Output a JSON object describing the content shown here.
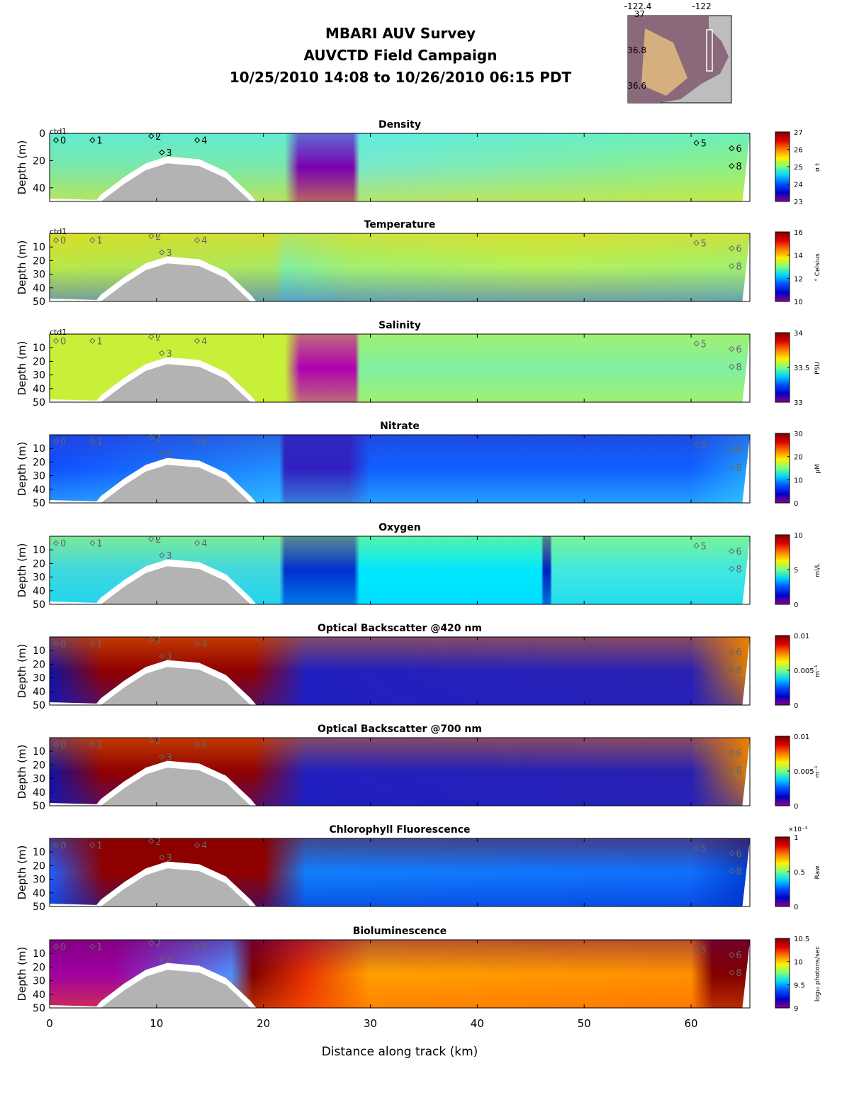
{
  "header": {
    "title_line1": "MBARI AUV Survey",
    "title_line2": "AUVCTD Field Campaign",
    "title_line3": "10/25/2010 14:08  to 10/26/2010 06:15 PDT"
  },
  "inset_map": {
    "lon_ticks": [
      "-122.4",
      "-122"
    ],
    "lat_ticks": [
      "37",
      "36.8",
      "36.6"
    ],
    "colors": {
      "land": "#bdbdbd",
      "sea": "#8a6a7a",
      "track": "#ffffff"
    }
  },
  "chart_data": {
    "type": "heatmap",
    "xlabel": "Distance along track (km)",
    "xlim": [
      0,
      65.5
    ],
    "x_ticks": [
      0,
      10,
      20,
      30,
      40,
      50,
      60
    ],
    "ylabel": "Depth (m)",
    "ylim": [
      0,
      50
    ],
    "station_label": "ctd1",
    "stations": [
      {
        "label": "0",
        "km": 0.6,
        "depth": 5
      },
      {
        "label": "1",
        "km": 4.0,
        "depth": 5
      },
      {
        "label": "2",
        "km": 9.5,
        "depth": 2
      },
      {
        "label": "3",
        "km": 10.5,
        "depth": 14
      },
      {
        "label": "4",
        "km": 13.8,
        "depth": 5
      },
      {
        "label": "5",
        "km": 60.5,
        "depth": 7
      },
      {
        "label": "6",
        "km": 63.8,
        "depth": 11
      },
      {
        "label": "8",
        "km": 63.8,
        "depth": 24
      }
    ],
    "bottom_profile_km_depth": [
      [
        4.8,
        50
      ],
      [
        7,
        37
      ],
      [
        9,
        27
      ],
      [
        11,
        22
      ],
      [
        14,
        24
      ],
      [
        16.5,
        33
      ],
      [
        18.8,
        50
      ]
    ],
    "panels": [
      {
        "title": "Density",
        "cbar_ticks": [
          "27",
          "26",
          "25",
          "24",
          "23"
        ],
        "cbar_unit": "σ t",
        "y_ticks": [
          0,
          20,
          40
        ],
        "show_ctd": true
      },
      {
        "title": "Temperature",
        "cbar_ticks": [
          "16",
          "14",
          "12",
          "10"
        ],
        "cbar_unit": "° Celsius",
        "y_ticks": [
          10,
          20,
          30,
          40,
          50
        ],
        "show_ctd": true
      },
      {
        "title": "Salinity",
        "cbar_ticks": [
          "34",
          "33.5",
          "33"
        ],
        "cbar_unit": "PSU",
        "y_ticks": [
          10,
          20,
          30,
          40,
          50
        ],
        "show_ctd": true
      },
      {
        "title": "Nitrate",
        "cbar_ticks": [
          "30",
          "20",
          "10",
          "0"
        ],
        "cbar_unit": "μM",
        "y_ticks": [
          10,
          20,
          30,
          40,
          50
        ],
        "show_ctd": false
      },
      {
        "title": "Oxygen",
        "cbar_ticks": [
          "10",
          "5",
          "0"
        ],
        "cbar_unit": "ml/L",
        "y_ticks": [
          10,
          20,
          30,
          40,
          50
        ],
        "show_ctd": false
      },
      {
        "title": "Optical Backscatter @420 nm",
        "cbar_ticks": [
          "0.01",
          "0.005",
          "0"
        ],
        "cbar_unit": "m⁻¹",
        "y_ticks": [
          10,
          20,
          30,
          40,
          50
        ],
        "show_ctd": false
      },
      {
        "title": "Optical Backscatter @700 nm",
        "cbar_ticks": [
          "0.01",
          "0.005",
          "0"
        ],
        "cbar_unit": "m⁻¹",
        "y_ticks": [
          10,
          20,
          30,
          40,
          50
        ],
        "show_ctd": false
      },
      {
        "title": "Chlorophyll Fluorescence",
        "cbar_ticks": [
          "1",
          "0.5",
          "0"
        ],
        "cbar_unit": "Raw",
        "cbar_multiplier": "×10⁻³",
        "y_ticks": [
          10,
          20,
          30,
          40,
          50
        ],
        "show_ctd": false
      },
      {
        "title": "Bioluminescence",
        "cbar_ticks": [
          "10.5",
          "10",
          "9.5",
          "9"
        ],
        "cbar_unit": "log₁₀ photons/sec",
        "y_ticks": [
          10,
          20,
          30,
          40,
          50
        ],
        "show_ctd": false
      }
    ]
  }
}
